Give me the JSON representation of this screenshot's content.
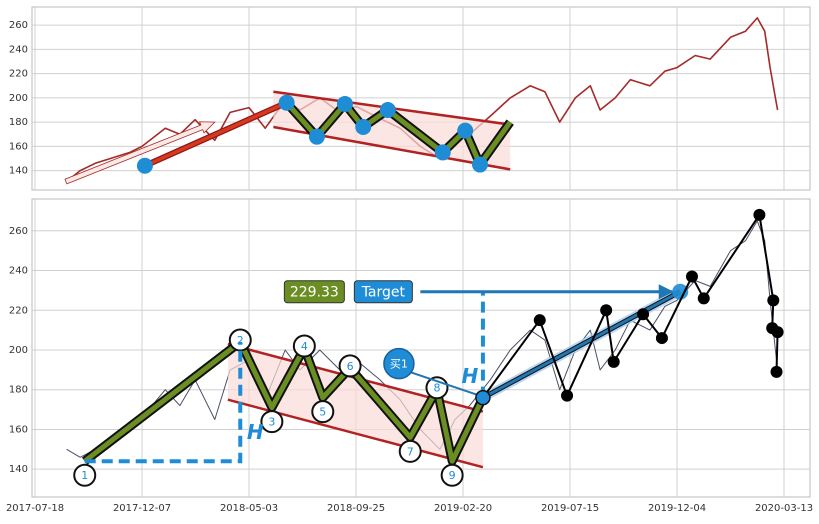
{
  "chart_data": [
    {
      "type": "line",
      "xlim": [
        "2017-07-14",
        "2020-04-07"
      ],
      "ylim": [
        124,
        275
      ],
      "xticks": [
        "2017-07-18",
        "2017-12-07",
        "2018-05-03",
        "2018-09-25",
        "2019-02-20",
        "2019-07-15",
        "2019-12-04",
        "2020-03-13"
      ],
      "yticks": [
        140,
        160,
        180,
        200,
        220,
        240,
        260
      ],
      "grid": true,
      "series": [
        {
          "kind": "price",
          "color": "#a52a2a",
          "x": [
            "2017-08-29",
            "2017-09-16",
            "2017-10-06",
            "2017-10-26",
            "2017-11-21",
            "2017-12-07",
            "2018-01-08",
            "2018-01-28",
            "2018-02-18",
            "2018-03-17",
            "2018-04-07",
            "2018-05-03",
            "2018-05-25",
            "2018-06-21",
            "2018-07-11",
            "2018-08-07",
            "2018-09-03",
            "2018-09-25",
            "2018-10-28",
            "2018-11-25",
            "2018-12-23",
            "2019-01-19",
            "2019-02-09",
            "2019-03-01",
            "2019-03-29",
            "2019-04-25",
            "2019-05-22",
            "2019-06-11",
            "2019-07-01",
            "2019-07-22",
            "2019-08-11",
            "2019-08-24",
            "2019-09-13",
            "2019-10-03",
            "2019-10-29",
            "2019-11-18",
            "2019-12-04",
            "2019-12-21",
            "2020-01-04",
            "2020-01-23",
            "2020-02-06",
            "2020-02-17",
            "2020-02-24",
            "2020-02-29",
            "2020-03-05",
            "2020-03-07"
          ],
          "values": [
            131,
            140,
            146,
            150,
            155,
            160,
            175,
            170,
            182,
            165,
            188,
            192,
            175,
            198,
            190,
            200,
            188,
            193,
            183,
            175,
            160,
            150,
            163,
            170,
            185,
            200,
            210,
            205,
            180,
            200,
            210,
            190,
            200,
            215,
            210,
            222,
            225,
            235,
            232,
            250,
            255,
            266,
            255,
            225,
            200,
            190
          ]
        },
        {
          "kind": "arrow",
          "color": "#a52a2a",
          "x": [
            "2017-08-28",
            "2018-03-17"
          ],
          "values": [
            131,
            180
          ]
        },
        {
          "kind": "channel",
          "color": "#b22222",
          "fill": "#fadbd8",
          "x": [
            "2018-06-05",
            "2019-04-25"
          ],
          "upper": [
            205,
            178
          ],
          "lower": [
            176,
            141
          ]
        },
        {
          "kind": "trend",
          "color": "#d9381e",
          "x": [
            "2017-12-11",
            "2018-06-23"
          ],
          "values": [
            144,
            196
          ]
        },
        {
          "kind": "zigzag",
          "color": "#6b8e23",
          "x": [
            "2018-06-23",
            "2018-08-03",
            "2018-09-10",
            "2018-10-05",
            "2018-11-08",
            "2019-01-23",
            "2019-02-23",
            "2019-03-15",
            "2019-04-25"
          ],
          "values": [
            196,
            168,
            195,
            176,
            190,
            155,
            173,
            145,
            180
          ]
        },
        {
          "kind": "dots",
          "color": "#1f8dd6",
          "x": [
            "2017-12-11",
            "2018-06-23",
            "2018-08-03",
            "2018-09-10",
            "2018-10-05",
            "2018-11-08",
            "2019-01-23",
            "2019-02-23",
            "2019-03-15"
          ],
          "values": [
            144,
            196,
            168,
            195,
            176,
            190,
            155,
            173,
            145
          ]
        }
      ]
    },
    {
      "type": "line",
      "xlim": [
        "2017-07-14",
        "2020-04-07"
      ],
      "ylim": [
        126,
        276
      ],
      "xticks": [
        "2017-07-18",
        "2017-12-07",
        "2018-05-03",
        "2018-09-25",
        "2019-02-20",
        "2019-07-15",
        "2019-12-04",
        "2020-03-13"
      ],
      "yticks": [
        140,
        160,
        180,
        200,
        220,
        240,
        260
      ],
      "grid": true,
      "series": [
        {
          "kind": "price",
          "color": "#4a5068",
          "x": [
            "2017-08-29",
            "2017-09-16",
            "2017-10-06",
            "2017-10-26",
            "2017-11-21",
            "2017-12-07",
            "2018-01-08",
            "2018-01-28",
            "2018-02-18",
            "2018-03-17",
            "2018-04-07",
            "2018-05-03",
            "2018-05-25",
            "2018-06-21",
            "2018-07-11",
            "2018-08-07",
            "2018-09-03",
            "2018-09-25",
            "2018-10-28",
            "2018-11-25",
            "2018-12-23",
            "2019-01-19",
            "2019-02-09",
            "2019-03-01",
            "2019-03-29",
            "2019-04-25",
            "2019-05-22",
            "2019-06-11",
            "2019-07-01",
            "2019-07-22",
            "2019-08-11",
            "2019-08-24",
            "2019-09-13",
            "2019-10-03",
            "2019-10-29",
            "2019-11-18",
            "2019-12-04",
            "2019-12-21",
            "2020-01-04",
            "2020-01-23",
            "2020-02-06",
            "2020-02-17",
            "2020-02-24",
            "2020-02-29",
            "2020-03-05",
            "2020-03-07"
          ],
          "values": [
            150,
            146,
            150,
            155,
            160,
            166,
            180,
            172,
            185,
            165,
            190,
            195,
            175,
            200,
            190,
            200,
            190,
            195,
            185,
            175,
            160,
            150,
            165,
            172,
            185,
            200,
            210,
            205,
            180,
            200,
            210,
            190,
            200,
            215,
            210,
            222,
            225,
            235,
            232,
            250,
            255,
            265,
            255,
            225,
            200,
            190
          ]
        },
        {
          "kind": "channel",
          "color": "#b22222",
          "fill": "#fadbd8",
          "x": [
            "2018-04-04",
            "2019-03-19"
          ],
          "upper": [
            203,
            169
          ],
          "lower": [
            175,
            141
          ]
        },
        {
          "kind": "trend",
          "color": "#d9381e",
          "x": [
            "2017-09-22",
            "2018-04-21"
          ],
          "values": [
            144,
            204
          ]
        },
        {
          "kind": "zigzag",
          "color": "#6b8e23",
          "x": [
            "2017-09-22",
            "2018-04-21",
            "2018-06-03",
            "2018-07-17",
            "2018-08-11",
            "2018-09-17",
            "2018-12-09",
            "2019-01-15",
            "2019-02-05",
            "2019-03-19"
          ],
          "values": [
            144,
            204,
            171,
            201,
            176,
            191,
            156,
            180,
            144,
            176
          ],
          "labels": [
            "1",
            "2",
            "3",
            "4",
            "5",
            "6",
            "7",
            "8",
            "9",
            null
          ]
        },
        {
          "kind": "target_line",
          "color": "#1f77b4",
          "x": [
            "2019-03-19",
            "2019-12-07"
          ],
          "values": [
            176,
            229.33
          ]
        },
        {
          "kind": "black",
          "color": "#000000",
          "x": [
            "2019-03-19",
            "2019-06-04",
            "2019-07-11",
            "2019-09-01",
            "2019-09-11",
            "2019-10-20",
            "2019-11-14",
            "2019-12-18",
            "2019-12-29",
            "2020-02-19",
            "2020-03-03",
            "2020-03-02",
            "2020-03-07",
            "2020-03-06"
          ],
          "values": [
            176,
            215,
            177,
            220,
            194,
            218,
            206,
            237,
            226,
            268,
            225,
            211,
            209,
            189
          ]
        }
      ],
      "target": {
        "value": 229.33,
        "label": "Target",
        "x": [
          "2018-12-23",
          "2019-12-07"
        ],
        "color": "#1f8dd6",
        "value_color": "#6b8e23"
      },
      "h_label": "H",
      "buy_label": "买1"
    }
  ]
}
